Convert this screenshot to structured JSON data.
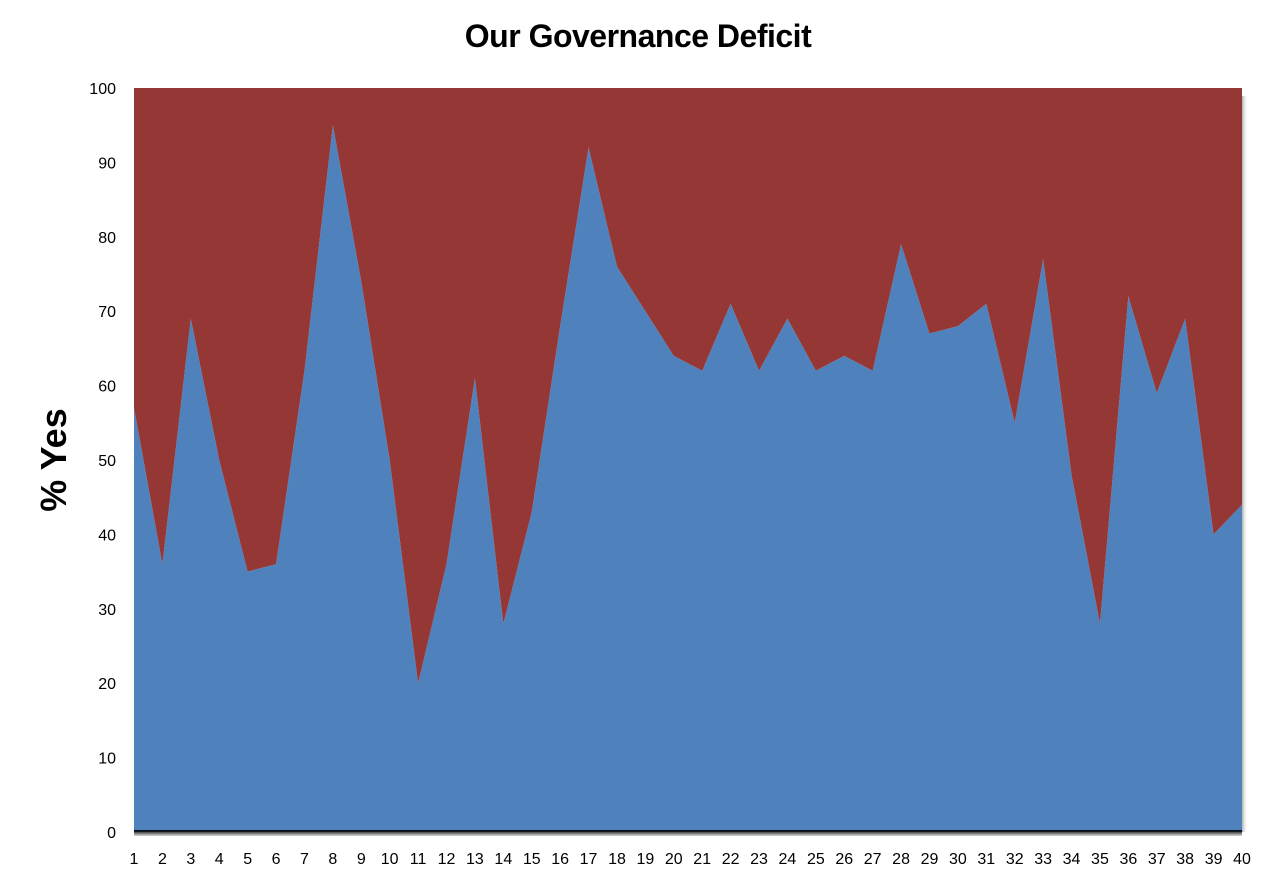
{
  "chart_data": {
    "type": "area",
    "title": "Our Governance Deficit",
    "ylabel": "% Yes",
    "xlabel": "",
    "ylim": [
      0,
      100
    ],
    "y_ticks": [
      "0",
      "10",
      "20",
      "30",
      "40",
      "50",
      "60",
      "70",
      "80",
      "90",
      "100"
    ],
    "x": [
      1,
      2,
      3,
      4,
      5,
      6,
      7,
      8,
      9,
      10,
      11,
      12,
      13,
      14,
      15,
      16,
      17,
      18,
      19,
      20,
      21,
      22,
      23,
      24,
      25,
      26,
      27,
      28,
      29,
      30,
      31,
      32,
      33,
      34,
      35,
      36,
      37,
      38,
      39,
      40
    ],
    "series": [
      {
        "values": [
          57,
          36,
          69,
          50,
          35,
          36,
          62,
          95,
          74,
          50,
          20,
          36,
          61,
          28,
          43,
          68,
          92,
          76,
          70,
          64,
          62,
          71,
          62,
          69,
          62,
          64,
          62,
          79,
          67,
          68,
          71,
          55,
          77,
          48,
          28,
          72,
          59,
          69,
          40,
          44
        ],
        "color": "#4f81bd"
      },
      {
        "values": [
          43,
          64,
          31,
          50,
          65,
          64,
          38,
          5,
          26,
          50,
          80,
          64,
          39,
          72,
          57,
          32,
          8,
          24,
          30,
          36,
          38,
          29,
          38,
          31,
          38,
          36,
          38,
          21,
          33,
          32,
          29,
          45,
          23,
          52,
          72,
          28,
          41,
          31,
          60,
          56
        ],
        "color": "#953735"
      }
    ],
    "stacked": true,
    "grid": false,
    "legend": "none"
  }
}
